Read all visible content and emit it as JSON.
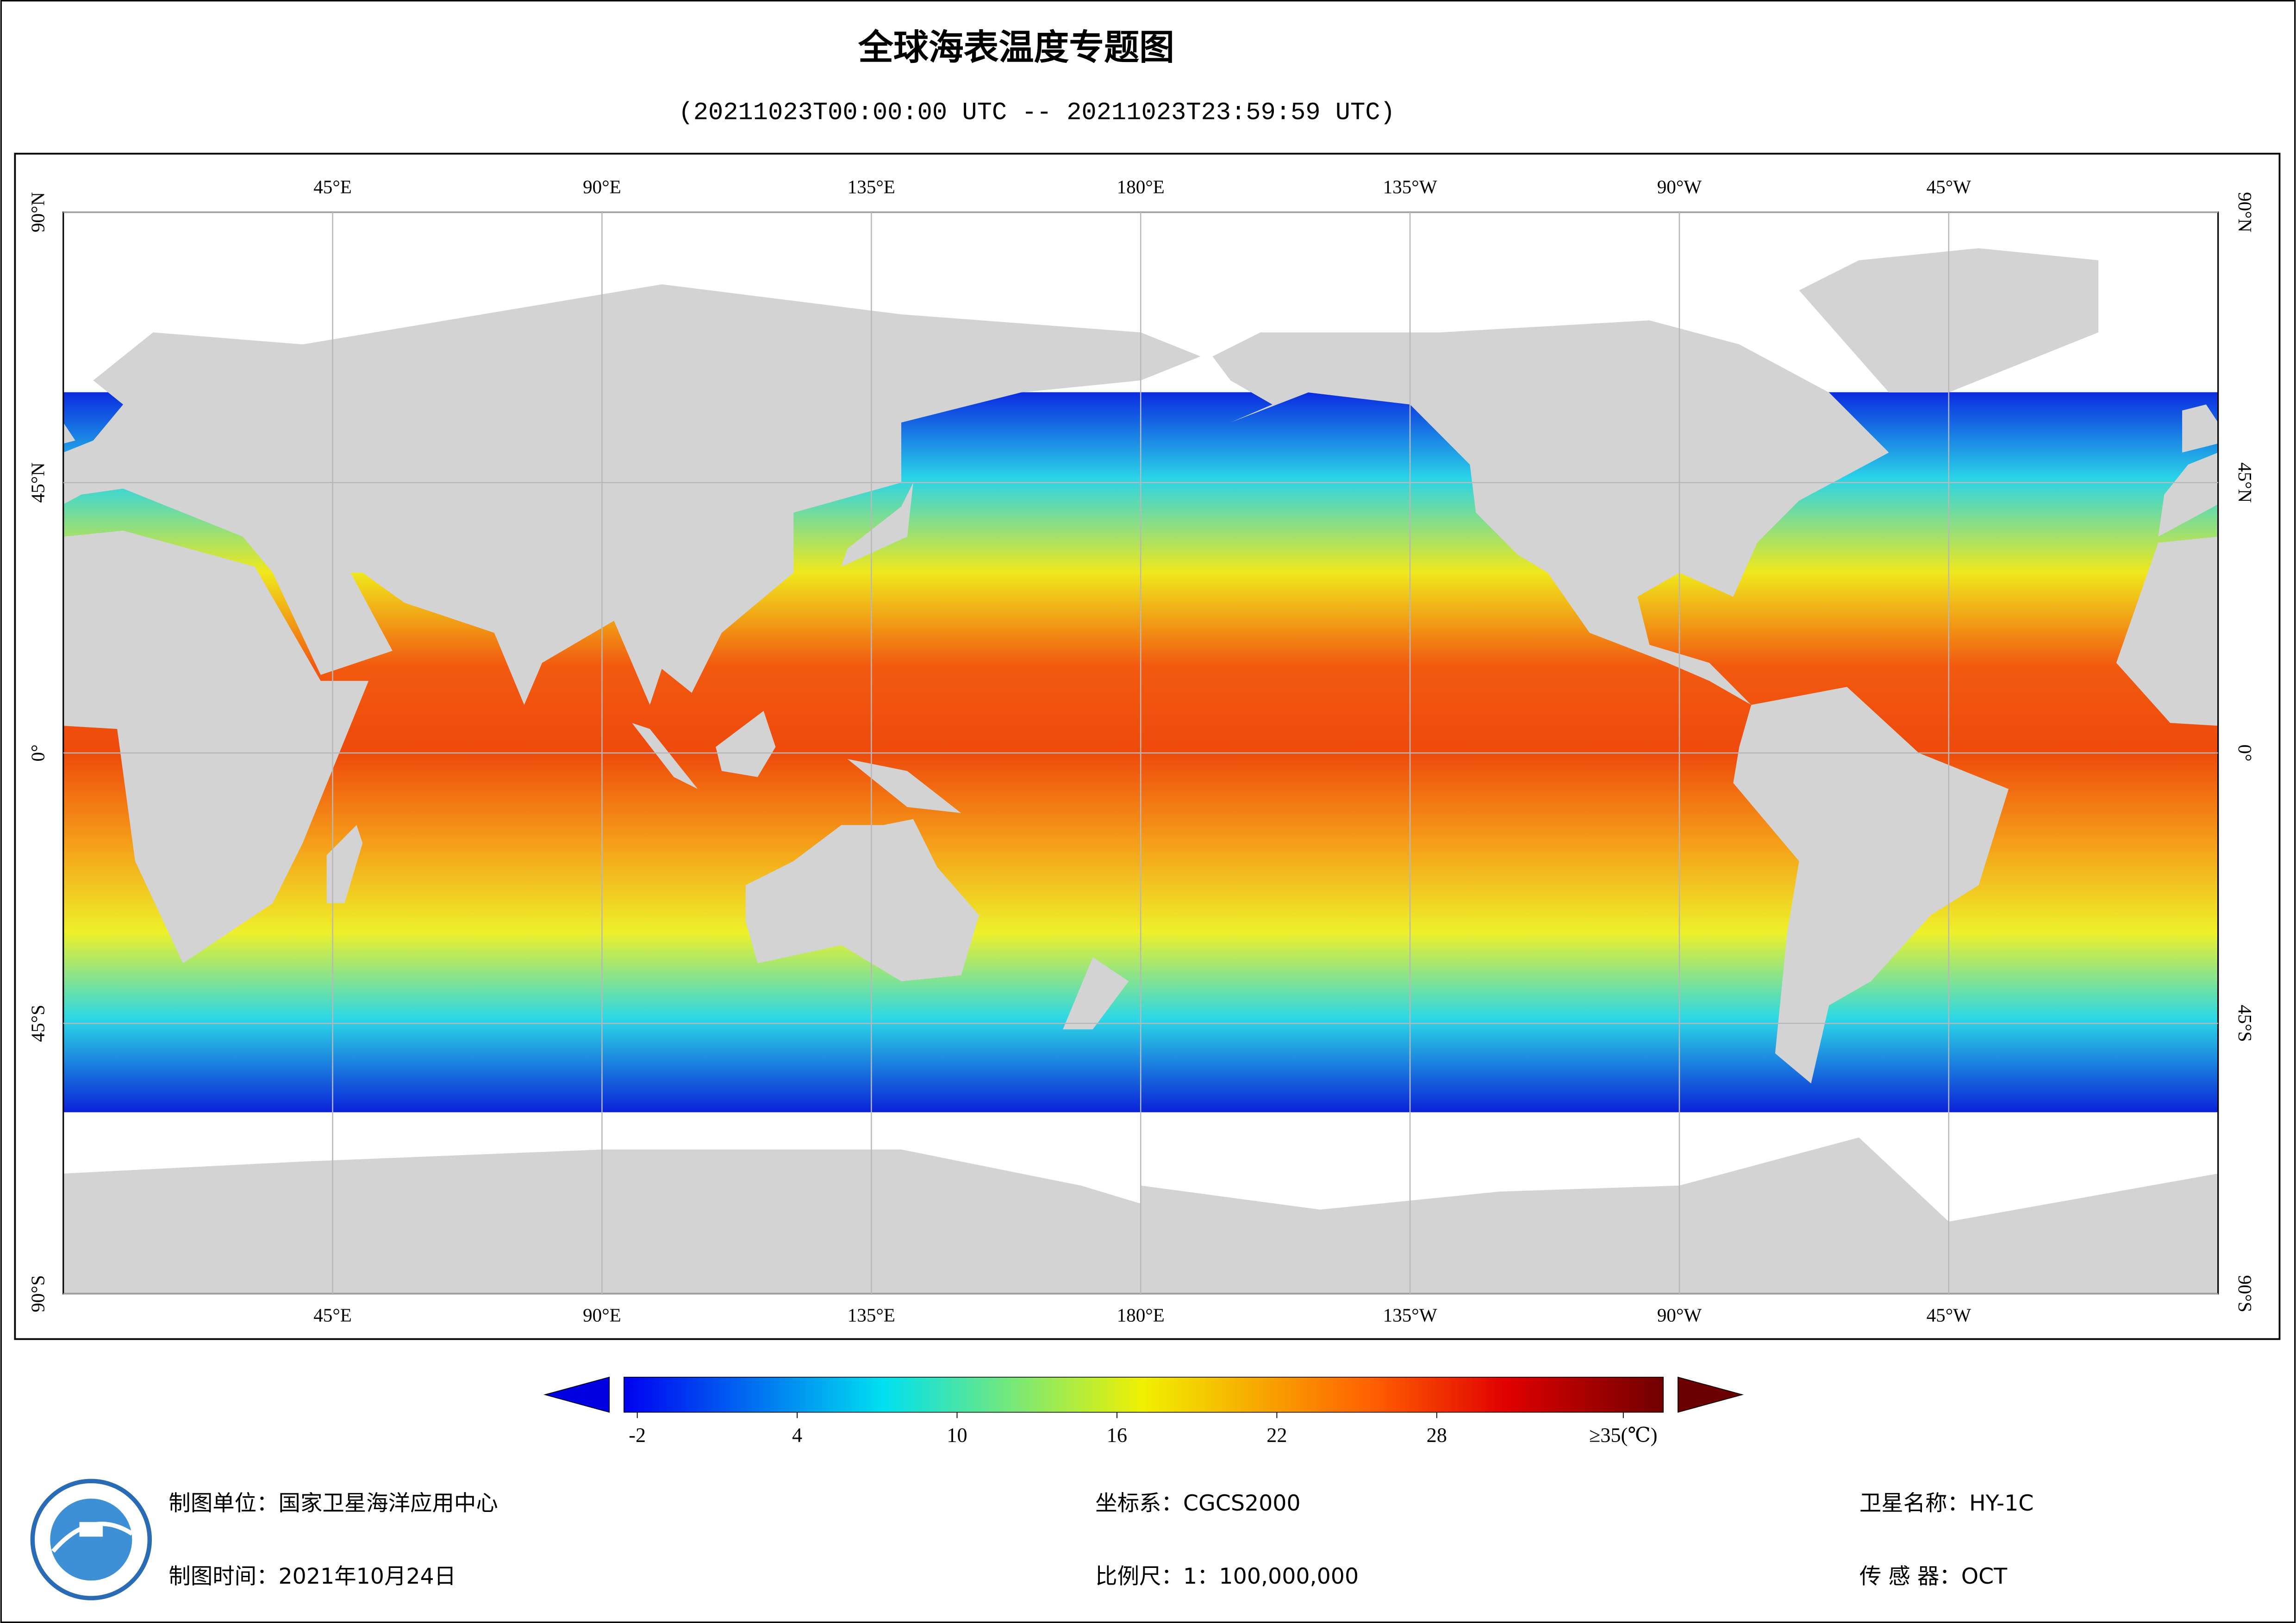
{
  "header": {
    "title": "全球海表温度专题图",
    "subtitle": "(20211023T00:00:00 UTC -- 20211023T23:59:59 UTC)"
  },
  "map": {
    "lon_range": [
      0,
      360
    ],
    "lat_range": [
      -90,
      90
    ],
    "lon_ticks": [
      {
        "value": 45,
        "label": "45°E"
      },
      {
        "value": 90,
        "label": "90°E"
      },
      {
        "value": 135,
        "label": "135°E"
      },
      {
        "value": 180,
        "label": "180°E"
      },
      {
        "value": 225,
        "label": "135°W"
      },
      {
        "value": 270,
        "label": "90°W"
      },
      {
        "value": 315,
        "label": "45°W"
      }
    ],
    "lat_ticks": [
      {
        "value": 90,
        "label": "90°N"
      },
      {
        "value": 45,
        "label": "45°N"
      },
      {
        "value": 0,
        "label": "0°"
      },
      {
        "value": -45,
        "label": "45°S"
      },
      {
        "value": -90,
        "label": "90°S"
      }
    ],
    "grid": true
  },
  "colorbar": {
    "range": [
      -2.5,
      36.5
    ],
    "ticks": [
      -2,
      4,
      10,
      16,
      22,
      28,
      {
        "value": 35,
        "label": "≥35(℃)"
      }
    ]
  },
  "footer": {
    "unit": "制图单位：国家卫星海洋应用中心",
    "date": "制图时间：2021年10月24日",
    "crs": "坐标系：CGCS2000",
    "scale": "比例尺：1：100,000,000",
    "satellite": "卫星名称：HY-1C",
    "sensor": "传 感 器：OCT"
  }
}
